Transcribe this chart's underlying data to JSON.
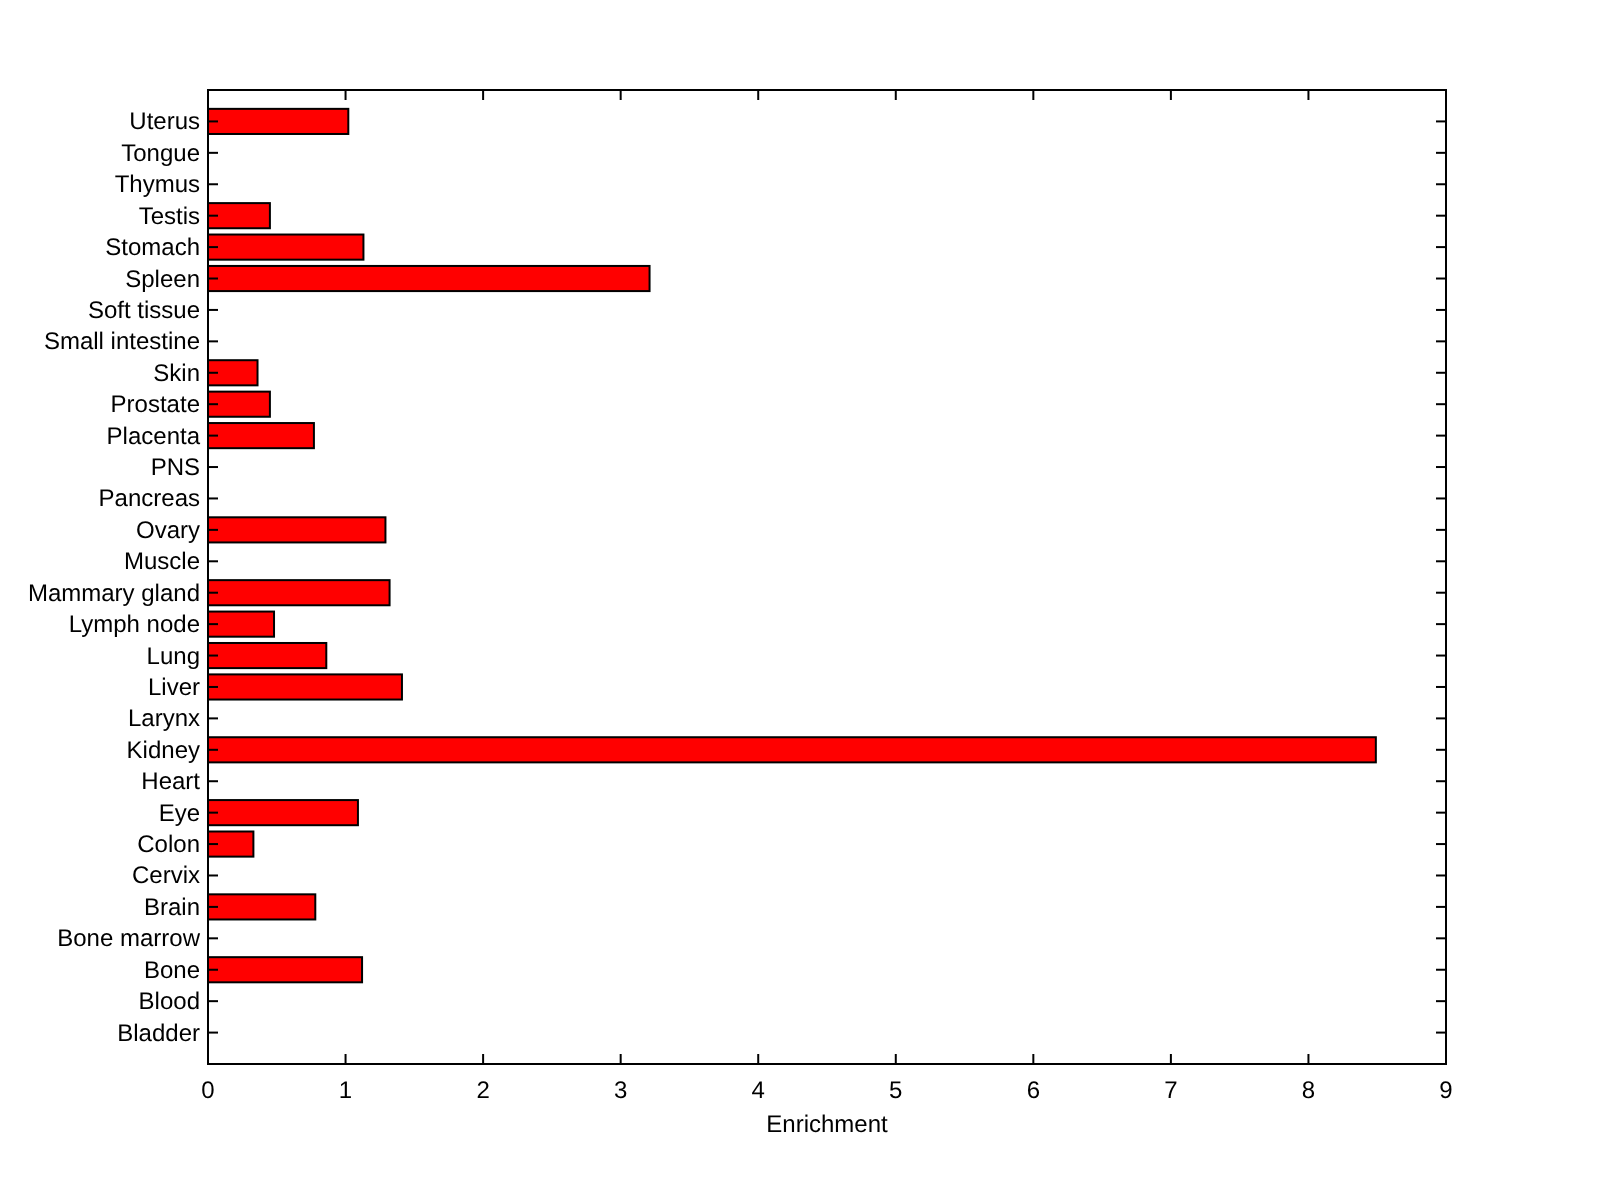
{
  "chart_data": {
    "type": "bar",
    "orientation": "horizontal",
    "xlabel": "Enrichment",
    "categories": [
      "Uterus",
      "Tongue",
      "Thymus",
      "Testis",
      "Stomach",
      "Spleen",
      "Soft tissue",
      "Small intestine",
      "Skin",
      "Prostate",
      "Placenta",
      "PNS",
      "Pancreas",
      "Ovary",
      "Muscle",
      "Mammary gland",
      "Lymph node",
      "Lung",
      "Liver",
      "Larynx",
      "Kidney",
      "Heart",
      "Eye",
      "Colon",
      "Cervix",
      "Brain",
      "Bone marrow",
      "Bone",
      "Blood",
      "Bladder"
    ],
    "values": [
      1.02,
      0,
      0,
      0.45,
      1.13,
      3.21,
      0,
      0,
      0.36,
      0.45,
      0.77,
      0,
      0,
      1.29,
      0,
      1.32,
      0.48,
      0.86,
      1.41,
      0,
      8.49,
      0,
      1.09,
      0.33,
      0,
      0.78,
      0,
      1.12,
      0,
      0
    ],
    "color": "#ff0000",
    "xlim": [
      0,
      9
    ],
    "xticks": [
      0,
      1,
      2,
      3,
      4,
      5,
      6,
      7,
      8,
      9
    ],
    "grid": false
  }
}
